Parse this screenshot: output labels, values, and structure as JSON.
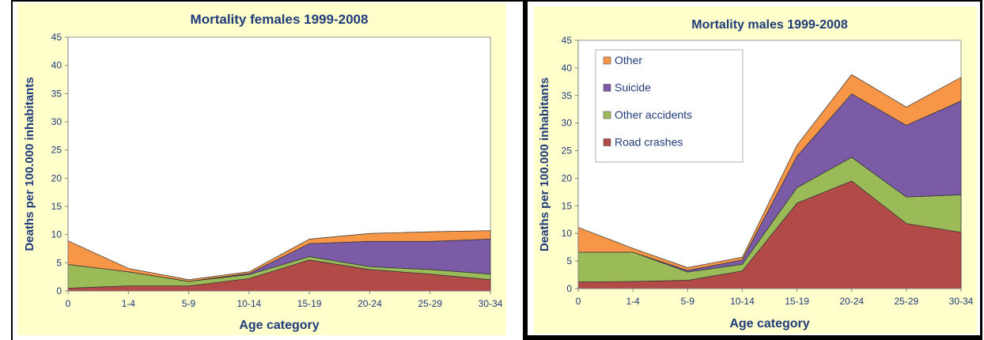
{
  "charts": [
    {
      "id": "females",
      "chart_data": {
        "type": "area",
        "stacked": true,
        "title": "Mortality females 1999-2008",
        "xlabel": "Age category",
        "ylabel": "Deaths per 100.000 inhabitants",
        "categories": [
          "0",
          "1-4",
          "5-9",
          "10-14",
          "15-19",
          "20-24",
          "25-29",
          "30-34"
        ],
        "ylim": [
          0,
          45
        ],
        "yticks": [
          0,
          5,
          10,
          15,
          20,
          25,
          30,
          35,
          40,
          45
        ],
        "legend": "none",
        "series": [
          {
            "name": "Road crashes",
            "color": "#B24A48",
            "values": [
              0.5,
              0.9,
              0.9,
              2.2,
              5.5,
              3.8,
              3.0,
              2.0
            ]
          },
          {
            "name": "Other accidents",
            "color": "#9BBB59",
            "values": [
              4.2,
              2.5,
              0.8,
              0.7,
              0.6,
              0.5,
              0.8,
              1.0
            ]
          },
          {
            "name": "Suicide",
            "color": "#7B5AA6",
            "values": [
              0.0,
              0.0,
              0.0,
              0.2,
              2.3,
              4.5,
              5.0,
              6.2
            ]
          },
          {
            "name": "Other",
            "color": "#F79646",
            "values": [
              4.2,
              0.6,
              0.3,
              0.3,
              0.8,
              1.4,
              1.7,
              1.5
            ]
          }
        ]
      }
    },
    {
      "id": "males",
      "chart_data": {
        "type": "area",
        "stacked": true,
        "title": "Mortality males 1999-2008",
        "xlabel": "Age category",
        "ylabel": "Deaths per 100.000 inhabitants",
        "categories": [
          "0",
          "1-4",
          "5-9",
          "10-14",
          "15-19",
          "20-24",
          "25-29",
          "30-34"
        ],
        "ylim": [
          0,
          45
        ],
        "yticks": [
          0,
          5,
          10,
          15,
          20,
          25,
          30,
          35,
          40,
          45
        ],
        "legend": "top-left",
        "legend_entries": [
          "Other",
          "Suicide",
          "Other accidents",
          "Road crashes"
        ],
        "series": [
          {
            "name": "Road crashes",
            "color": "#B24A48",
            "values": [
              1.2,
              1.3,
              1.5,
              3.2,
              15.5,
              19.5,
              11.8,
              10.2
            ]
          },
          {
            "name": "Other accidents",
            "color": "#9BBB59",
            "values": [
              5.4,
              5.3,
              1.5,
              1.2,
              2.8,
              4.3,
              4.8,
              6.8
            ]
          },
          {
            "name": "Suicide",
            "color": "#7B5AA6",
            "values": [
              0.0,
              0.0,
              0.3,
              0.8,
              5.7,
              11.5,
              13.0,
              17.0
            ]
          },
          {
            "name": "Other",
            "color": "#F79646",
            "values": [
              4.5,
              0.7,
              0.5,
              0.5,
              2.0,
              3.5,
              3.3,
              4.3
            ]
          }
        ]
      }
    }
  ]
}
